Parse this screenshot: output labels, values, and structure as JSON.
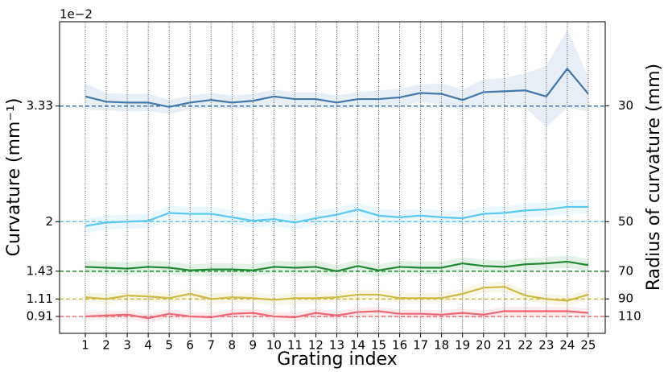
{
  "chart_data": {
    "type": "line",
    "xlabel": "Grating index",
    "ylabel": "Curvature (mm⁻¹)",
    "y2label": "Radius of curvature (mm)",
    "y_offset": {
      "value": 0.01,
      "label": "1e−2"
    },
    "y2scale": "reciprocal",
    "x": [
      1,
      2,
      3,
      4,
      5,
      6,
      7,
      8,
      9,
      10,
      11,
      12,
      13,
      14,
      15,
      16,
      17,
      18,
      19,
      20,
      21,
      22,
      23,
      24,
      25
    ],
    "xticks": [
      1,
      2,
      3,
      4,
      5,
      6,
      7,
      8,
      9,
      10,
      11,
      12,
      13,
      14,
      15,
      16,
      17,
      18,
      19,
      20,
      21,
      22,
      23,
      24,
      25
    ],
    "xlim": [
      -0.23,
      25.81
    ],
    "ylim": [
      0.715,
      4.3
    ],
    "yticks": [
      0.91,
      1.11,
      1.43,
      2.0,
      3.33
    ],
    "y2ticks": [
      110,
      90,
      70,
      50,
      30
    ],
    "grid": "x",
    "series": [
      {
        "color": "#4477aa",
        "reference": 3.33,
        "values": [
          3.44,
          3.38,
          3.37,
          3.37,
          3.32,
          3.37,
          3.4,
          3.37,
          3.39,
          3.44,
          3.41,
          3.41,
          3.37,
          3.41,
          3.41,
          3.43,
          3.48,
          3.47,
          3.4,
          3.49,
          3.5,
          3.51,
          3.44,
          3.76,
          3.47
        ],
        "spread": [
          0.15,
          0.1,
          0.1,
          0.1,
          0.08,
          0.08,
          0.08,
          0.08,
          0.08,
          0.08,
          0.08,
          0.08,
          0.08,
          0.08,
          0.1,
          0.1,
          0.1,
          0.12,
          0.12,
          0.15,
          0.15,
          0.2,
          0.35,
          0.45,
          0.2
        ]
      },
      {
        "color": "#5bc8ef",
        "reference": 2.0,
        "values": [
          1.95,
          1.99,
          2.0,
          2.01,
          2.1,
          2.09,
          2.09,
          2.05,
          2.01,
          2.03,
          1.99,
          2.04,
          2.08,
          2.14,
          2.07,
          2.05,
          2.07,
          2.05,
          2.04,
          2.09,
          2.1,
          2.13,
          2.14,
          2.17,
          2.17
        ],
        "spread": [
          0.08,
          0.08,
          0.08,
          0.08,
          0.08,
          0.08,
          0.08,
          0.08,
          0.08,
          0.08,
          0.08,
          0.08,
          0.08,
          0.08,
          0.08,
          0.08,
          0.08,
          0.08,
          0.08,
          0.08,
          0.08,
          0.08,
          0.08,
          0.08,
          0.08
        ]
      },
      {
        "color": "#228833",
        "reference": 1.43,
        "values": [
          1.48,
          1.47,
          1.46,
          1.48,
          1.47,
          1.44,
          1.45,
          1.45,
          1.44,
          1.48,
          1.47,
          1.48,
          1.43,
          1.49,
          1.44,
          1.48,
          1.47,
          1.47,
          1.52,
          1.49,
          1.48,
          1.51,
          1.52,
          1.54,
          1.5
        ],
        "spread": [
          0.07,
          0.07,
          0.07,
          0.07,
          0.07,
          0.07,
          0.07,
          0.07,
          0.07,
          0.07,
          0.07,
          0.07,
          0.07,
          0.07,
          0.07,
          0.07,
          0.07,
          0.07,
          0.07,
          0.07,
          0.07,
          0.07,
          0.07,
          0.07,
          0.07
        ]
      },
      {
        "color": "#ccbb44",
        "reference": 1.11,
        "values": [
          1.13,
          1.11,
          1.15,
          1.14,
          1.12,
          1.17,
          1.11,
          1.13,
          1.12,
          1.1,
          1.12,
          1.12,
          1.13,
          1.16,
          1.16,
          1.12,
          1.12,
          1.12,
          1.17,
          1.24,
          1.25,
          1.15,
          1.11,
          1.09,
          1.16
        ],
        "spread": [
          0.06,
          0.06,
          0.06,
          0.06,
          0.06,
          0.06,
          0.06,
          0.06,
          0.06,
          0.06,
          0.06,
          0.06,
          0.06,
          0.06,
          0.06,
          0.06,
          0.06,
          0.06,
          0.06,
          0.06,
          0.06,
          0.06,
          0.06,
          0.06,
          0.06
        ]
      },
      {
        "color": "#ee6677",
        "reference": 0.91,
        "values": [
          0.91,
          0.92,
          0.93,
          0.89,
          0.94,
          0.91,
          0.9,
          0.94,
          0.95,
          0.91,
          0.9,
          0.95,
          0.92,
          0.96,
          0.97,
          0.94,
          0.94,
          0.93,
          0.95,
          0.93,
          0.97,
          0.97,
          0.97,
          0.97,
          0.95
        ],
        "spread": [
          0.05,
          0.05,
          0.05,
          0.05,
          0.05,
          0.05,
          0.05,
          0.05,
          0.05,
          0.05,
          0.05,
          0.05,
          0.05,
          0.05,
          0.05,
          0.05,
          0.05,
          0.05,
          0.05,
          0.05,
          0.05,
          0.05,
          0.05,
          0.05,
          0.05
        ]
      }
    ]
  }
}
